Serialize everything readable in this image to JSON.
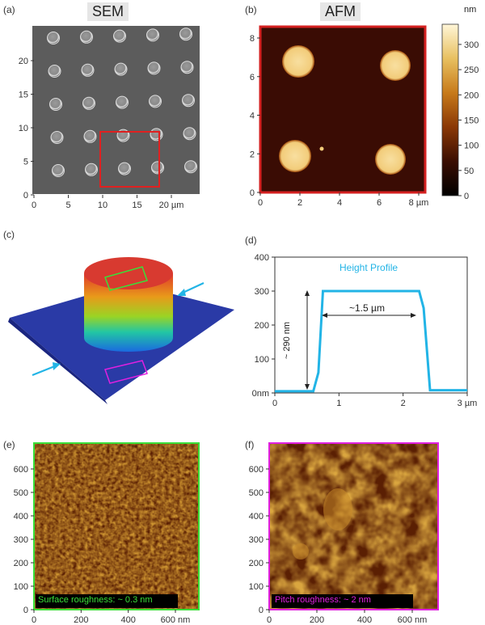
{
  "panels": {
    "a": {
      "label": "(a)",
      "title": "SEM",
      "x_ticks": [
        "0",
        "5",
        "10",
        "15",
        "20 µm"
      ],
      "y_ticks": [
        "20",
        "15",
        "10",
        "5",
        "0"
      ]
    },
    "b": {
      "label": "(b)",
      "title": "AFM",
      "x_ticks": [
        "0",
        "2",
        "4",
        "6",
        "8 µm"
      ],
      "y_ticks": [
        "8",
        "6",
        "4",
        "2",
        "0"
      ],
      "colorbar_unit": "nm",
      "colorbar_ticks": [
        "300",
        "250",
        "200",
        "150",
        "100",
        "50",
        "0"
      ]
    },
    "c": {
      "label": "(c)"
    },
    "d": {
      "label": "(d)",
      "annotation": "Height Profile",
      "width_label": "~1.5 µm",
      "height_label": "~ 290 nm",
      "x_ticks": [
        "0",
        "1",
        "2",
        "3 µm"
      ],
      "y_ticks": [
        "400",
        "300",
        "200",
        "100",
        "0nm"
      ]
    },
    "e": {
      "label": "(e)",
      "caption": "Surface roughness: ~ 0.3 nm",
      "x_ticks": [
        "0",
        "200",
        "400",
        "600 nm"
      ],
      "y_ticks": [
        "600",
        "500",
        "400",
        "300",
        "200",
        "100",
        "0"
      ]
    },
    "f": {
      "label": "(f)",
      "caption": "Pitch roughness: ~ 2 nm",
      "x_ticks": [
        "0",
        "200",
        "400",
        "600 nm"
      ],
      "y_ticks": [
        "600",
        "500",
        "400",
        "300",
        "200",
        "100",
        "0"
      ]
    }
  },
  "colors": {
    "profile": "#22b4e6",
    "sem_box": "#e02020",
    "afm_frame": "#d42020",
    "green": "#39e039",
    "magenta": "#e020e0"
  },
  "chart_data": {
    "type": "line",
    "series": [
      {
        "x": [
          0,
          0.6,
          0.68,
          0.75,
          2.25,
          2.32,
          2.42,
          3.0
        ],
        "y": [
          5,
          5,
          60,
          300,
          300,
          250,
          8,
          8
        ]
      }
    ],
    "xlim": [
      0,
      3
    ],
    "ylim": [
      0,
      400
    ]
  }
}
